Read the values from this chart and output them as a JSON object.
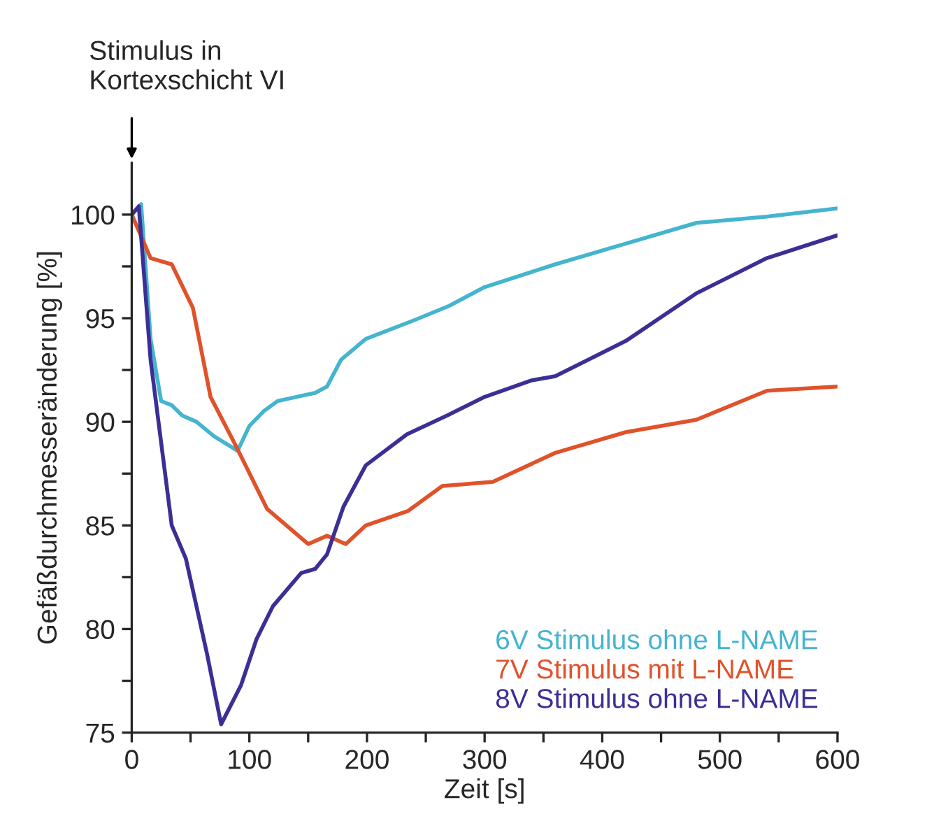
{
  "chart_data": {
    "type": "line",
    "xlabel": "Zeit [s]",
    "ylabel": "Gefäßdurchmesseränderung [%]",
    "annotations": [
      "Stimulus in\nKortexschicht VI"
    ],
    "series": [
      {
        "name": "6V Stimulus ohne L-NAME",
        "color": "#45b4cf",
        "x": [
          0,
          8,
          16,
          25,
          34,
          43,
          55,
          70,
          90,
          100,
          112,
          124,
          140,
          156,
          166,
          178,
          199,
          240,
          270,
          300,
          360,
          420,
          480,
          540,
          600
        ],
        "values": [
          100,
          100.5,
          94,
          91,
          90.8,
          90.3,
          90,
          89.3,
          88.6,
          89.8,
          90.5,
          91,
          91.2,
          91.4,
          91.7,
          93,
          94,
          94.9,
          95.6,
          96.5,
          97.6,
          98.6,
          99.6,
          99.9,
          100.3
        ]
      },
      {
        "name": "7V Stimulus mit L-NAME",
        "color": "#e0522a",
        "x": [
          0,
          16,
          34,
          52,
          67,
          88,
          115,
          150,
          166,
          182,
          199,
          235,
          264,
          307,
          360,
          420,
          480,
          540,
          600
        ],
        "values": [
          100,
          97.9,
          97.6,
          95.5,
          91.2,
          88.9,
          85.8,
          84.1,
          84.5,
          84.1,
          85,
          85.7,
          86.9,
          87.1,
          88.5,
          89.5,
          90.1,
          91.5,
          91.7
        ]
      },
      {
        "name": "8V Stimulus ohne L-NAME",
        "color": "#3b2f96",
        "x": [
          0,
          6,
          16,
          34,
          46,
          64,
          76,
          93,
          106,
          120,
          144,
          156,
          166,
          180,
          199,
          234,
          268,
          300,
          340,
          360,
          420,
          480,
          540,
          600
        ],
        "values": [
          100,
          100.4,
          93,
          85,
          83.4,
          78.8,
          75.4,
          77.3,
          79.5,
          81.1,
          82.7,
          82.9,
          83.6,
          85.9,
          87.9,
          89.4,
          90.3,
          91.2,
          92,
          92.2,
          93.9,
          96.2,
          97.9,
          99
        ]
      }
    ],
    "xlim": [
      0,
      600
    ],
    "ylim": [
      75,
      102.5
    ],
    "xticks": [
      0,
      {
        "value": 50,
        "label": null
      },
      100,
      {
        "value": 150,
        "label": null
      },
      200,
      {
        "value": 250,
        "label": null
      },
      300,
      {
        "value": 350,
        "label": null
      },
      400,
      {
        "value": 450,
        "label": null
      },
      500,
      {
        "value": 550,
        "label": null
      },
      600
    ],
    "yticks": [
      75,
      {
        "value": 77.5,
        "label": null
      },
      80,
      {
        "value": 82.5,
        "label": null
      },
      85,
      {
        "value": 87.5,
        "label": null
      },
      90,
      {
        "value": 92.5,
        "label": null
      },
      95,
      {
        "value": 97.5,
        "label": null
      },
      100
    ],
    "grid": false,
    "legend": "bottom right",
    "marker": "none",
    "line_style": "solid"
  }
}
